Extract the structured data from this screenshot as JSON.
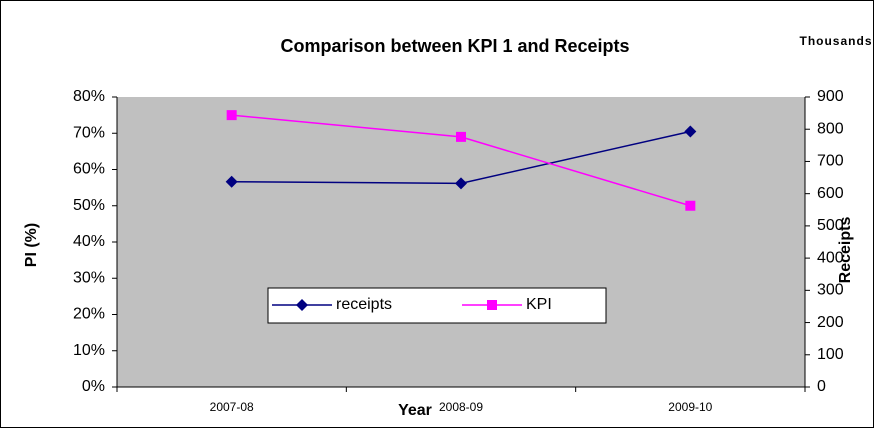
{
  "chart_data": {
    "type": "line",
    "title": "Comparison between KPI 1 and Receipts",
    "y2_unit": "Thousands",
    "x_label": "Year",
    "y_label": "PI (%)",
    "y2_label": "Receipts",
    "categories": [
      "2007-08",
      "2008-09",
      "2009-10"
    ],
    "series": [
      {
        "name": "receipts",
        "color": "#000080",
        "marker": "diamond",
        "axis": "y2",
        "values": [
          637,
          632,
          793
        ]
      },
      {
        "name": "KPI",
        "color": "#ff00ff",
        "marker": "square",
        "values": [
          75,
          69,
          50
        ]
      }
    ],
    "ylim": [
      0,
      80
    ],
    "yticks": [
      {
        "value": 0,
        "label": "0%"
      },
      {
        "value": 10,
        "label": "10%"
      },
      {
        "value": 20,
        "label": "20%"
      },
      {
        "value": 30,
        "label": "30%"
      },
      {
        "value": 40,
        "label": "40%"
      },
      {
        "value": 50,
        "label": "50%"
      },
      {
        "value": 60,
        "label": "60%"
      },
      {
        "value": 70,
        "label": "70%"
      },
      {
        "value": 80,
        "label": "80%"
      }
    ],
    "y2lim": [
      0,
      900
    ],
    "y2ticks": [
      0,
      100,
      200,
      300,
      400,
      500,
      600,
      700,
      800,
      900
    ],
    "plot_background": "#c0c0c0"
  }
}
